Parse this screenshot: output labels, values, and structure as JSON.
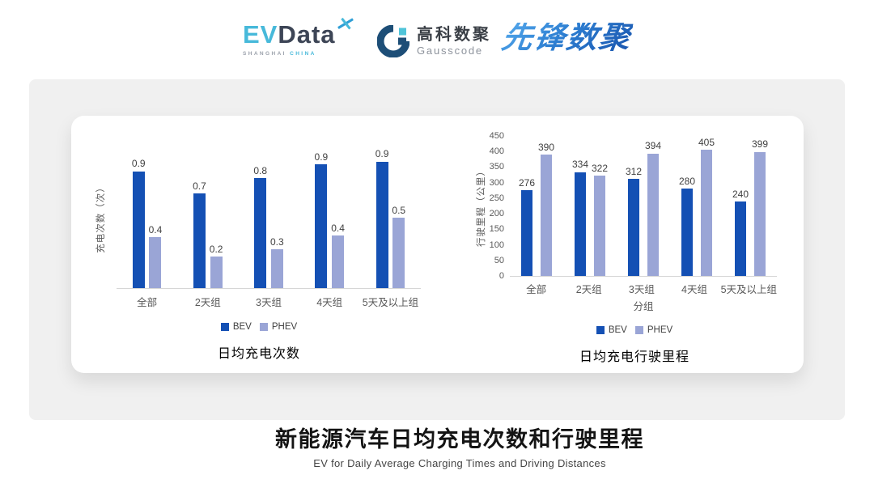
{
  "header": {
    "evdata": {
      "ev": "EV",
      "data": "Data",
      "sub_left": "SHANGHAI",
      "sub_right": "CHINA"
    },
    "gausscode": {
      "name_cn": "高科数聚",
      "name_en": "Gausscode"
    },
    "xianfeng": {
      "name": "先锋数聚"
    }
  },
  "icons": {
    "evdata_star": "sparkle-x",
    "gausscode_mark": "g-ring-with-squares"
  },
  "colors": {
    "bev": "#1450B4",
    "phev": "#9AA5D6",
    "panel": "#F0F0F0",
    "baseline": "#D6D6D6"
  },
  "chart_data": [
    {
      "id": "charging-times",
      "type": "bar",
      "title": "日均充电次数",
      "ylabel": "充电次数（次）",
      "xlabel": "",
      "categories": [
        "全部",
        "2天组",
        "3天组",
        "4天组",
        "5天及以上组"
      ],
      "series": [
        {
          "name": "BEV",
          "color": "#1450B4",
          "values": [
            0.9,
            0.7,
            0.8,
            0.9,
            0.9
          ],
          "labels": [
            "0.9",
            "0.7",
            "0.8",
            "0.9",
            "0.9"
          ],
          "values_unrounded_est": [
            0.85,
            0.69,
            0.8,
            0.9,
            0.92
          ]
        },
        {
          "name": "PHEV",
          "color": "#9AA5D6",
          "values": [
            0.4,
            0.2,
            0.3,
            0.4,
            0.5
          ],
          "labels": [
            "0.4",
            "0.2",
            "0.3",
            "0.4",
            "0.5"
          ],
          "values_unrounded_est": [
            0.37,
            0.23,
            0.28,
            0.38,
            0.51
          ]
        }
      ],
      "ylim": [
        0,
        1.0
      ],
      "yticks": [],
      "grid": false,
      "legend_position": "bottom"
    },
    {
      "id": "driving-distance",
      "type": "bar",
      "title": "日均充电行驶里程",
      "ylabel": "行驶里程（公里）",
      "xlabel": "分组",
      "categories": [
        "全部",
        "2天组",
        "3天组",
        "4天组",
        "5天及以上组"
      ],
      "series": [
        {
          "name": "BEV",
          "color": "#1450B4",
          "values": [
            276,
            334,
            312,
            280,
            240
          ]
        },
        {
          "name": "PHEV",
          "color": "#9AA5D6",
          "values": [
            390,
            322,
            394,
            405,
            399
          ]
        }
      ],
      "ylim": [
        0,
        450
      ],
      "yticks": [
        0,
        50,
        100,
        150,
        200,
        250,
        300,
        350,
        400,
        450
      ],
      "grid": false,
      "legend_position": "bottom"
    }
  ],
  "footer": {
    "title_cn": "新能源汽车日均充电次数和行驶里程",
    "subtitle_en": "EV for Daily Average Charging Times and Driving Distances"
  }
}
